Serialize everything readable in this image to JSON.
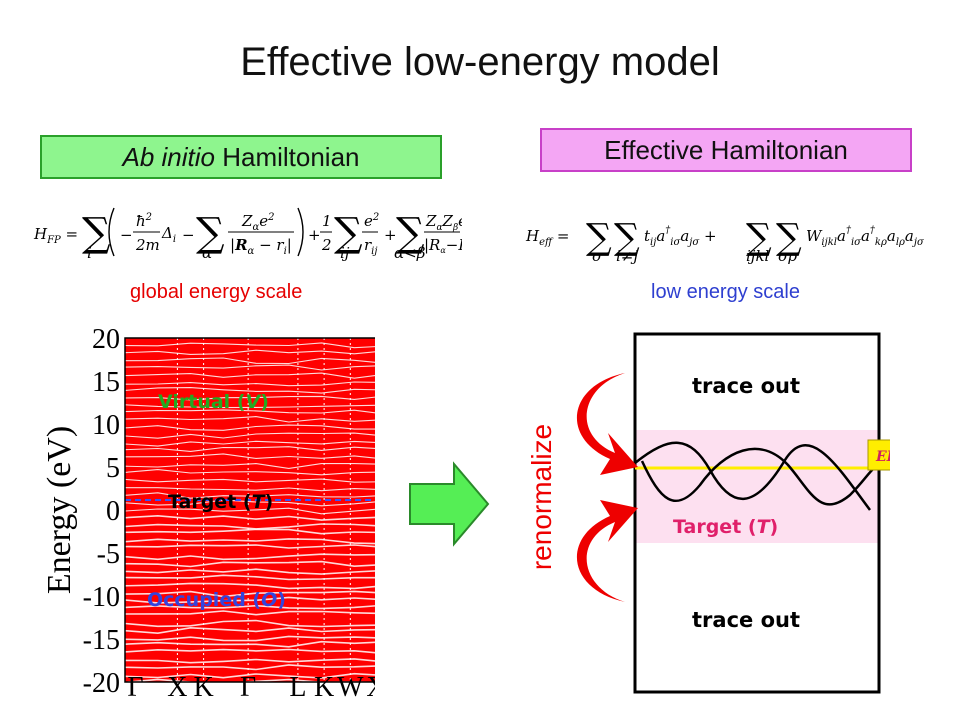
{
  "title": "Effective low-energy model",
  "left_header": {
    "italic": "Ab initio",
    "rest": " Hamiltonian"
  },
  "right_header": "Effective Hamiltonian",
  "left_equation_label": "H_FP =",
  "right_equation_label": "H_eff =",
  "global_scale": "global energy scale",
  "low_scale": "low energy scale",
  "band_plot": {
    "ylabel": "Energy  (eV)",
    "yticks": [
      "20",
      "15",
      "10",
      "5",
      "0",
      "-5",
      "-10",
      "-15",
      "-20"
    ],
    "xticks": [
      "Γ",
      "X",
      "K",
      "Γ",
      "L",
      "K",
      "W",
      "X"
    ],
    "regions": {
      "virtual": {
        "text": "Virtual (",
        "sym": "V",
        "close": ")"
      },
      "target": {
        "text": "Target (",
        "sym": "T",
        "close": ")"
      },
      "occupied": {
        "text": "Occupied (",
        "sym": "O",
        "close": ")"
      }
    },
    "colors": {
      "bands": "#ff0000",
      "fermi": "#3355ff",
      "virtual_label": "#22aa22",
      "occupied_label": "#3344dd"
    }
  },
  "right_panel": {
    "top_label": "trace out",
    "bottom_label": "trace out",
    "target": {
      "text": "Target (",
      "sym": "T",
      "close": ")"
    },
    "fermi_label": "EF",
    "renormalize": "renormalize",
    "colors": {
      "target_band": "#fde0f0",
      "fermi_line": "#ffee00",
      "arrows": "#ee0000",
      "target_text": "#e0206a"
    }
  }
}
